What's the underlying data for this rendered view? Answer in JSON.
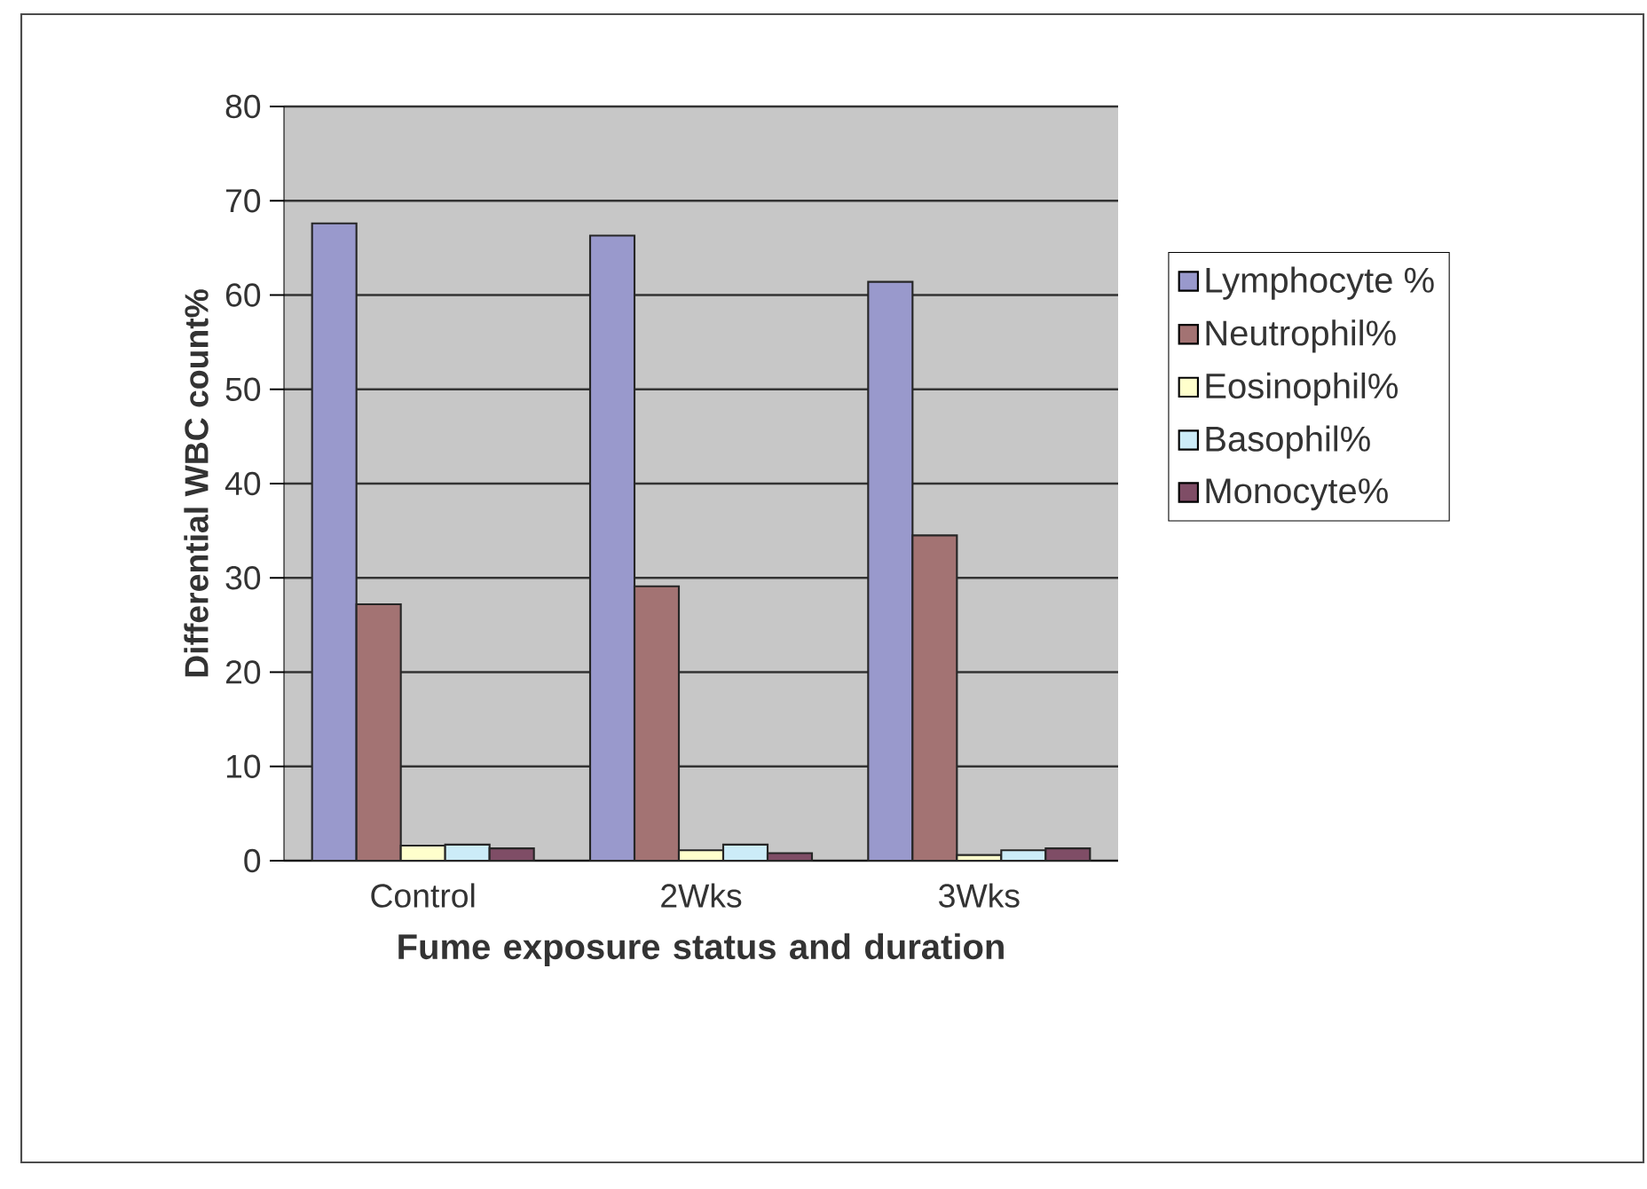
{
  "chart_data": {
    "type": "bar",
    "xlabel": "Fume exposure status and duration",
    "ylabel": "Differential WBC count%",
    "categories": [
      "Control",
      "2Wks",
      "3Wks"
    ],
    "series": [
      {
        "name": "Lymphocyte %",
        "color": "#9999cc",
        "values": [
          67.6,
          66.3,
          61.4
        ]
      },
      {
        "name": "Neutrophil%",
        "color": "#a37373",
        "values": [
          27.2,
          29.1,
          34.5
        ]
      },
      {
        "name": "Eosinophil%",
        "color": "#ffffcc",
        "values": [
          1.6,
          1.1,
          0.6
        ]
      },
      {
        "name": "Basophil%",
        "color": "#ccecf8",
        "values": [
          1.7,
          1.7,
          1.1
        ]
      },
      {
        "name": "Monocyte%",
        "color": "#7f4d66",
        "values": [
          1.3,
          0.8,
          1.3
        ]
      }
    ],
    "ylim": [
      0,
      80
    ],
    "yticks": [
      0,
      10,
      20,
      30,
      40,
      50,
      60,
      70,
      80
    ],
    "grid": "y",
    "legend": "right"
  }
}
